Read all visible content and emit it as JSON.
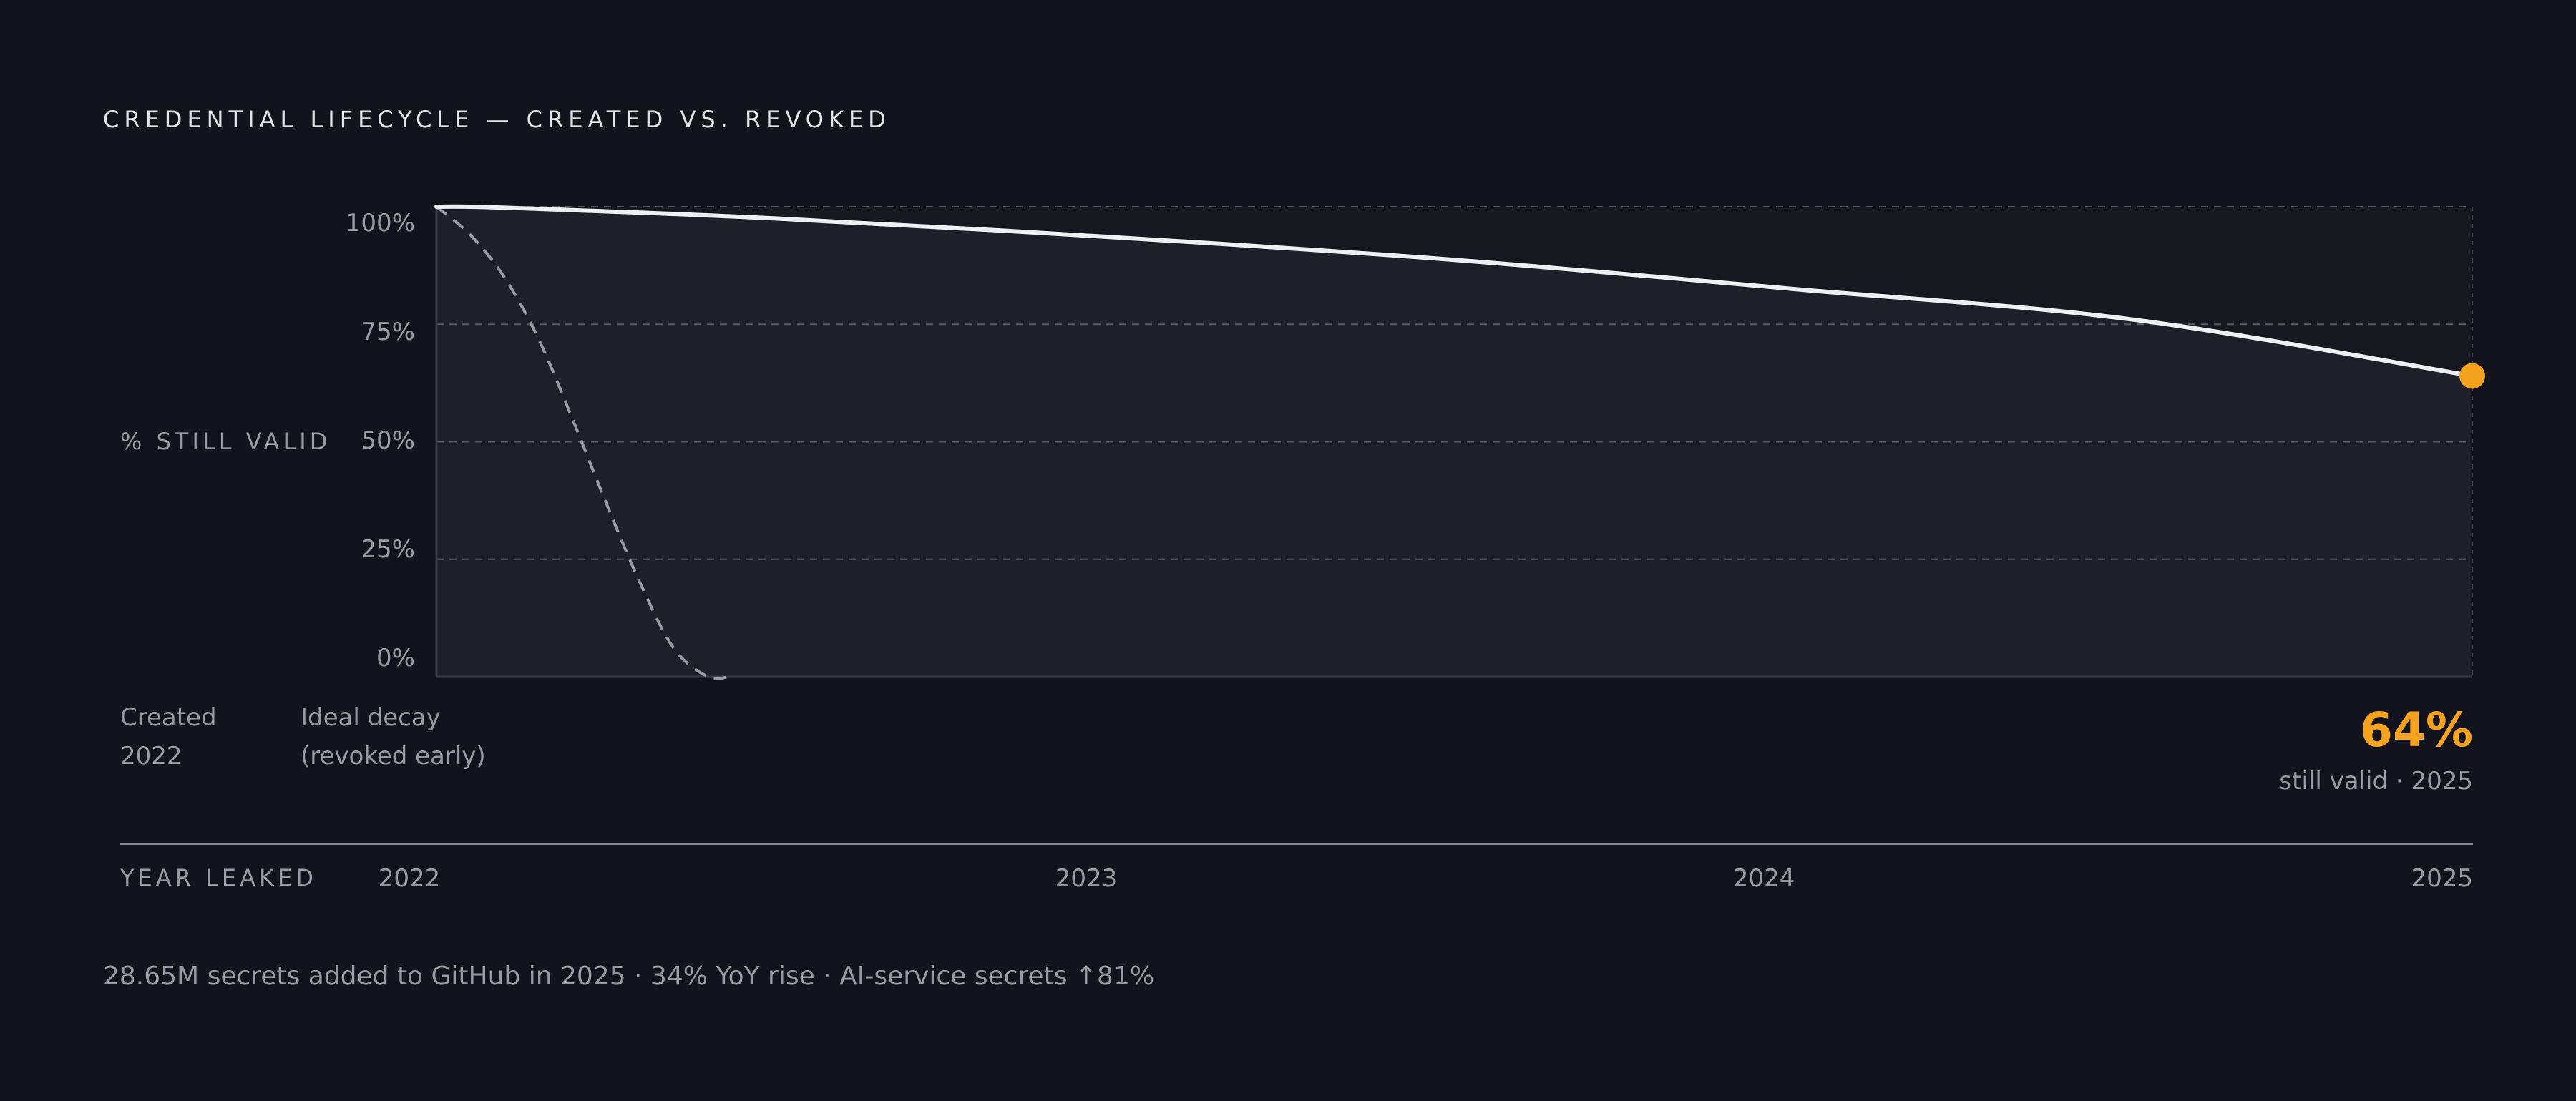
{
  "title": "CREDENTIAL LIFECYCLE — CREATED VS. REVOKED",
  "colors": {
    "background": "#13131d",
    "plot_fill": "#1f1f29",
    "actual_line": "#f0f0f4",
    "ideal_line": "#9a9aa4",
    "accent": "#f5a21f"
  },
  "chart_data": {
    "type": "line",
    "ylabel": "% STILL VALID",
    "xlabel": "YEAR LEAKED",
    "ylim": [
      0,
      100
    ],
    "xlim": [
      2022,
      2025
    ],
    "y_ticks": [
      "100%",
      "75%",
      "50%",
      "25%",
      "0%"
    ],
    "y_tick_values": [
      100,
      75,
      50,
      25,
      0
    ],
    "x_ticks": [
      "2022",
      "2023",
      "2024",
      "2025"
    ],
    "x_tick_values": [
      2022,
      2023,
      2024,
      2025
    ],
    "grid": true,
    "series": [
      {
        "style": "solid",
        "x": [
          2022.0,
          2022.1,
          2022.5,
          2023.0,
          2023.5,
          2024.0,
          2024.5,
          2025.0
        ],
        "y": [
          100,
          99.8,
          97.5,
          93.5,
          88.7,
          82.5,
          76.0,
          64
        ]
      },
      {
        "style": "dashed",
        "x": [
          2022.0,
          2022.05,
          2022.1,
          2022.15,
          2022.2,
          2022.25,
          2022.3,
          2022.35,
          2022.4,
          2022.43
        ],
        "y": [
          100,
          94,
          85,
          72,
          55,
          37,
          20,
          6,
          0,
          0
        ]
      }
    ],
    "annotations": {
      "created_line1": "Created",
      "created_line2": "2022",
      "ideal_line1": "Ideal decay",
      "ideal_line2": "(revoked early)",
      "endpoint_value": "64%",
      "endpoint_caption": "still valid · 2025"
    }
  },
  "footer": "28.65M secrets added to GitHub in 2025  ·  34% YoY rise  ·  AI-service secrets ↑81%"
}
